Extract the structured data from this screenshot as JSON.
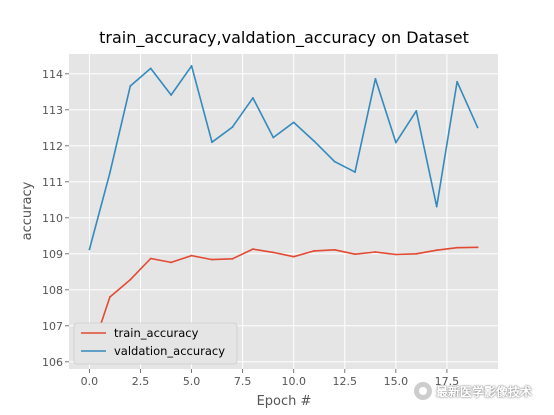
{
  "chart_data": {
    "type": "line",
    "title": "train_accuracy,valdation_accuracy on Dataset",
    "xlabel": "Epoch #",
    "ylabel": "accuracy",
    "xlim": [
      -1,
      20
    ],
    "ylim": [
      105.8,
      114.55
    ],
    "xticks": [
      0.0,
      2.5,
      5.0,
      7.5,
      10.0,
      12.5,
      15.0,
      17.5
    ],
    "xtick_labels": [
      "0.0",
      "2.5",
      "5.0",
      "7.5",
      "10.0",
      "12.5",
      "15.0",
      "17.5"
    ],
    "yticks": [
      106,
      107,
      108,
      109,
      110,
      111,
      112,
      113,
      114
    ],
    "ytick_labels": [
      "106",
      "107",
      "108",
      "109",
      "110",
      "111",
      "112",
      "113",
      "114"
    ],
    "x": [
      0,
      1,
      2,
      3,
      4,
      5,
      6,
      7,
      8,
      9,
      10,
      11,
      12,
      13,
      14,
      15,
      16,
      17,
      18,
      19
    ],
    "series": [
      {
        "name": "train_accuracy",
        "color": "#E24A33",
        "values": [
          106.1,
          107.8,
          108.28,
          108.87,
          108.76,
          108.95,
          108.84,
          108.86,
          109.13,
          109.04,
          108.92,
          109.08,
          109.11,
          108.99,
          109.05,
          108.98,
          109.0,
          109.1,
          109.17,
          109.18
        ]
      },
      {
        "name": "valdation_accuracy",
        "color": "#348ABD",
        "values": [
          109.12,
          111.25,
          113.66,
          114.15,
          113.41,
          114.22,
          112.1,
          112.52,
          113.33,
          112.23,
          112.65,
          112.13,
          111.56,
          111.27,
          113.86,
          112.09,
          112.97,
          110.31,
          113.78,
          112.51
        ]
      }
    ],
    "grid": true,
    "legend_position": "lower-left",
    "background_color": "#E5E5E5",
    "grid_color": "#FFFFFF"
  },
  "watermark": {
    "icon": "wechat-icon",
    "text": "最新医学影像技术"
  }
}
